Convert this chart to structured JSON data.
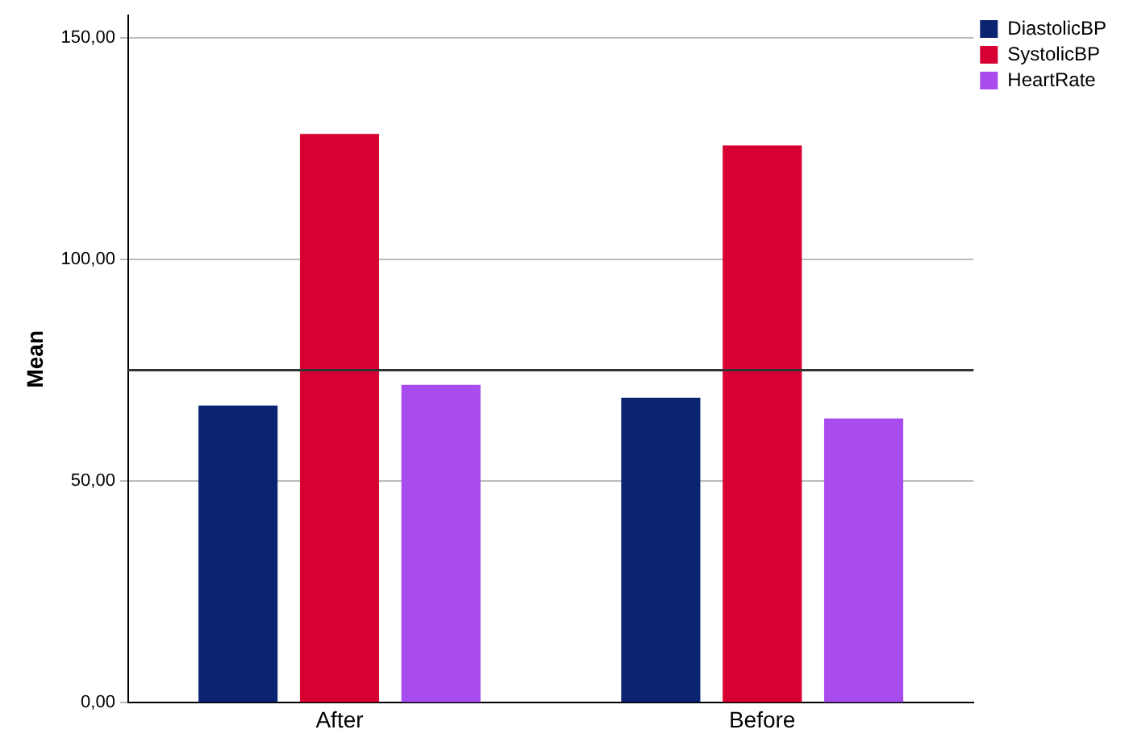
{
  "chart_data": {
    "type": "bar",
    "ylabel": "Mean",
    "categories": [
      "After",
      "Before"
    ],
    "series": [
      {
        "name": "DiastolicBP",
        "color": "#0b2471",
        "values": [
          67.0,
          68.8
        ]
      },
      {
        "name": "SystolicBP",
        "color": "#d70032",
        "values": [
          128.3,
          125.7
        ]
      },
      {
        "name": "HeartRate",
        "color": "#a84cf0",
        "values": [
          71.7,
          64.1
        ]
      }
    ],
    "ylim": [
      0,
      155
    ],
    "yticks": [
      {
        "value": 0,
        "label": "0,00"
      },
      {
        "value": 50,
        "label": "50,00"
      },
      {
        "value": 100,
        "label": "100,00"
      },
      {
        "value": 150,
        "label": "150,00"
      }
    ],
    "grid": "y",
    "legend": "top right",
    "ref_lines": [
      {
        "axis": "y",
        "value": 75,
        "label": null,
        "color": "#333333"
      }
    ]
  }
}
